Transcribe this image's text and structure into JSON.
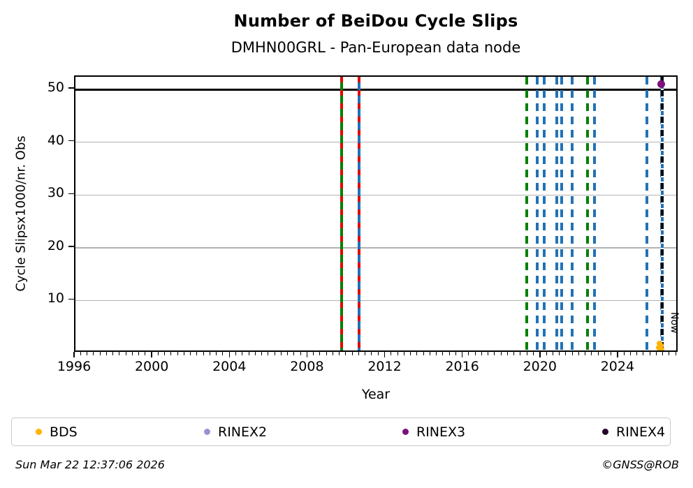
{
  "title": "Number of BeiDou Cycle Slips",
  "subtitle": "DMHN00GRL - Pan-European data node",
  "footer": {
    "generated": "Sun Mar 22 12:37:06 2026",
    "copyright": "©GNSS@ROB"
  },
  "chart_data": {
    "type": "scatter",
    "title": "Number of BeiDou Cycle Slips",
    "subtitle": "DMHN00GRL - Pan-European data node",
    "xlabel": "Year",
    "ylabel": "Cycle Slipsx1000/nr. Obs",
    "xlim": [
      1996,
      2027.1
    ],
    "ylim": [
      0,
      52.4
    ],
    "xticks": [
      1996,
      2000,
      2004,
      2008,
      2012,
      2016,
      2020,
      2024
    ],
    "x_minor_tick_step": 0.33333,
    "yticks": [
      10,
      20,
      30,
      40,
      50
    ],
    "grid": "horizontal-only",
    "grid_color": "#b2b2b2",
    "cap_line_y": 50,
    "now_line": {
      "x": 2026.22,
      "label": "Now",
      "style": "dashed",
      "color": "#000000",
      "under_color": "#2272b5"
    },
    "event_lines": [
      {
        "x": 2009.7,
        "style": "solid",
        "color": "#008000",
        "overlay_color": "#e10600",
        "overlay_style": "dashed"
      },
      {
        "x": 2010.6,
        "style": "solid",
        "color": "#2272b5",
        "overlay_color": "#e10600",
        "overlay_style": "dashed"
      },
      {
        "x": 2019.25,
        "style": "dashed",
        "color": "#008000"
      },
      {
        "x": 2019.8,
        "style": "dashed",
        "color": "#2272b5"
      },
      {
        "x": 2020.15,
        "style": "dashed",
        "color": "#2272b5"
      },
      {
        "x": 2020.8,
        "style": "dashed",
        "color": "#2272b5"
      },
      {
        "x": 2021.05,
        "style": "dashed",
        "color": "#2272b5"
      },
      {
        "x": 2021.6,
        "style": "dashed",
        "color": "#2272b5"
      },
      {
        "x": 2022.4,
        "style": "dashed",
        "color": "#008000"
      },
      {
        "x": 2022.75,
        "style": "dashed",
        "color": "#2272b5"
      },
      {
        "x": 2025.45,
        "style": "dashed",
        "color": "#2272b5"
      },
      {
        "x": 2026.2,
        "style": "dashed",
        "color": "#2272b5"
      }
    ],
    "series": [
      {
        "name": "BDS",
        "color": "#ffb405",
        "marker": "dot",
        "points": [
          [
            2026.08,
            1.9
          ],
          [
            2026.16,
            1.5
          ],
          [
            2026.05,
            1.0
          ],
          [
            2026.2,
            0.7
          ],
          [
            2026.13,
            0.3
          ]
        ]
      },
      {
        "name": "RINEX2",
        "color": "#9693d2",
        "marker": "dot",
        "points": []
      },
      {
        "name": "RINEX3",
        "color": "#7d0f7d",
        "marker": "dot",
        "points": [
          [
            2026.2,
            51.0
          ]
        ]
      },
      {
        "name": "RINEX4",
        "color": "#230227",
        "marker": "dot",
        "points": []
      }
    ],
    "legend": {
      "position": "bottom",
      "entries": [
        "BDS",
        "RINEX2",
        "RINEX3",
        "RINEX4"
      ]
    }
  }
}
